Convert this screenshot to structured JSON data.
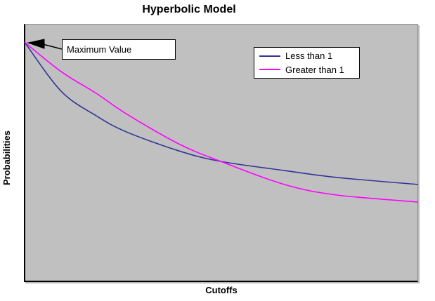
{
  "chart_data": {
    "type": "line",
    "title": "Hyperbolic Model",
    "xlabel": "Cutoffs",
    "ylabel": "Probabilities",
    "plot_background": "#c0c0c0",
    "axes": {
      "x_ticks": [],
      "y_ticks": [],
      "grid": false,
      "note": "no tick labels or gridlines shown; qualitative plot"
    },
    "x": [
      0,
      0.093,
      0.182,
      0.258,
      0.392,
      0.499,
      0.66,
      0.794,
      1.0
    ],
    "xlim": [
      0,
      1
    ],
    "ylim": [
      0,
      1
    ],
    "series": [
      {
        "name": "Less than 1",
        "color": "#333399",
        "values": [
          0.929,
          0.739,
          0.644,
          0.582,
          0.508,
          0.467,
          0.432,
          0.405,
          0.378
        ]
      },
      {
        "name": "Greater than 1",
        "color": "#ff00ff",
        "values": [
          0.929,
          0.815,
          0.731,
          0.652,
          0.535,
          0.467,
          0.378,
          0.337,
          0.31
        ]
      }
    ],
    "legend_position": "upper right inside plot",
    "annotation": {
      "text": "Maximum Value",
      "points_to": "shared starting point of both curves at upper-left of plot"
    }
  }
}
